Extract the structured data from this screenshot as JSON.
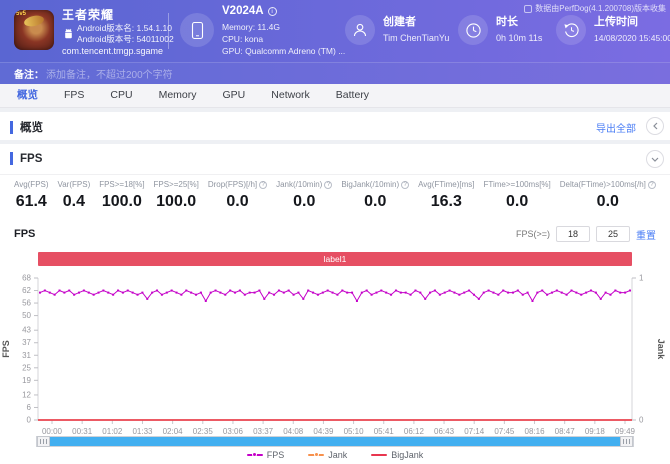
{
  "header": {
    "app": {
      "title": "王者荣耀",
      "badge": "5v5",
      "version_name": "Android版本名: 1.54.1.10",
      "version_code": "Android版本号: 54011002",
      "package": "com.tencent.tmgp.sgame"
    },
    "device": {
      "model": "V2024A",
      "memory": "Memory: 11.4G",
      "cpu": "CPU: kona",
      "gpu": "GPU: Qualcomm Adreno (TM) ..."
    },
    "creator": {
      "label": "创建者",
      "value": "Tim ChenTianYu"
    },
    "duration": {
      "label": "时长",
      "value": "0h 10m 11s"
    },
    "upload": {
      "label": "上传时间",
      "value": "14/08/2020 15:45:00"
    },
    "collect_note": "数据由PerfDog(4.1.200708)版本收集"
  },
  "remark": {
    "label": "备注：",
    "placeholder": "添加备注，不超过200个字符"
  },
  "tabs": [
    "概览",
    "FPS",
    "CPU",
    "Memory",
    "GPU",
    "Network",
    "Battery"
  ],
  "active_tab": "概览",
  "overview": {
    "title": "概览",
    "export_label": "导出全部"
  },
  "fps_section": {
    "title": "FPS",
    "chart_title": "FPS",
    "threshold": {
      "label": "FPS(>=)",
      "low": "18",
      "high": "25",
      "reset_label": "重置"
    },
    "stats": [
      {
        "label": "Avg(FPS)",
        "value": "61.4",
        "info": false
      },
      {
        "label": "Var(FPS)",
        "value": "0.4",
        "info": false
      },
      {
        "label": "FPS>=18[%]",
        "value": "100.0",
        "info": false
      },
      {
        "label": "FPS>=25[%]",
        "value": "100.0",
        "info": false
      },
      {
        "label": "Drop(FPS)[/h]",
        "value": "0.0",
        "info": true
      },
      {
        "label": "Jank(/10min)",
        "value": "0.0",
        "info": true
      },
      {
        "label": "BigJank(/10min)",
        "value": "0.0",
        "info": true
      },
      {
        "label": "Avg(FTime)[ms]",
        "value": "16.3",
        "info": false
      },
      {
        "label": "FTime>=100ms[%]",
        "value": "0.0",
        "info": false
      },
      {
        "label": "Delta(FTime)>100ms[/h]",
        "value": "0.0",
        "info": true
      }
    ]
  },
  "chart_data": {
    "type": "line",
    "region_label": "label1",
    "ylabel_left": "FPS",
    "ylabel_right": "Jank",
    "ylim_left": [
      0,
      68
    ],
    "ylim_right": [
      0,
      1
    ],
    "y_ticks_left": [
      0,
      6,
      12,
      19,
      25,
      31,
      37,
      43,
      50,
      56,
      62,
      68
    ],
    "y_ticks_right": [
      0,
      1
    ],
    "x_ticks": [
      "00:00",
      "00:31",
      "01:02",
      "01:33",
      "02:04",
      "02:35",
      "03:06",
      "03:37",
      "04:08",
      "04:39",
      "05:10",
      "05:41",
      "06:12",
      "06:43",
      "07:14",
      "07:45",
      "08:16",
      "08:47",
      "09:18",
      "09:49"
    ],
    "grid": false,
    "legend": [
      "FPS",
      "Jank",
      "BigJank"
    ],
    "legend_position": "bottom",
    "series": [
      {
        "name": "FPS",
        "axis": "left",
        "color": "#c400c8",
        "values": [
          61,
          62,
          61,
          60,
          62,
          61,
          62,
          60,
          61,
          62,
          61,
          60,
          61,
          62,
          61,
          60,
          62,
          61,
          62,
          61,
          60,
          61,
          58,
          61,
          62,
          60,
          61,
          62,
          61,
          60,
          62,
          61,
          60,
          61,
          57,
          61,
          62,
          61,
          60,
          62,
          61,
          62,
          60,
          61,
          61,
          62,
          58,
          61,
          60,
          62,
          61,
          62,
          60,
          61,
          58,
          62,
          61,
          60,
          61,
          62,
          61,
          60,
          62,
          61,
          61,
          57,
          61,
          62,
          60,
          61,
          62,
          61,
          60,
          62,
          61,
          61,
          60,
          62,
          61,
          58,
          61,
          62,
          60,
          61,
          62,
          61,
          60,
          61,
          62,
          60,
          58,
          61,
          62,
          61,
          60,
          62,
          61,
          61,
          62,
          60,
          61,
          57,
          61,
          62,
          60,
          61,
          62,
          61,
          60,
          62,
          61,
          60,
          61,
          62,
          61,
          58,
          61,
          60,
          62,
          61,
          61,
          62
        ]
      },
      {
        "name": "Jank",
        "axis": "right",
        "color": "#f7914d",
        "constant": 0
      },
      {
        "name": "BigJank",
        "axis": "right",
        "color": "#e8364f",
        "constant": 0
      }
    ]
  }
}
